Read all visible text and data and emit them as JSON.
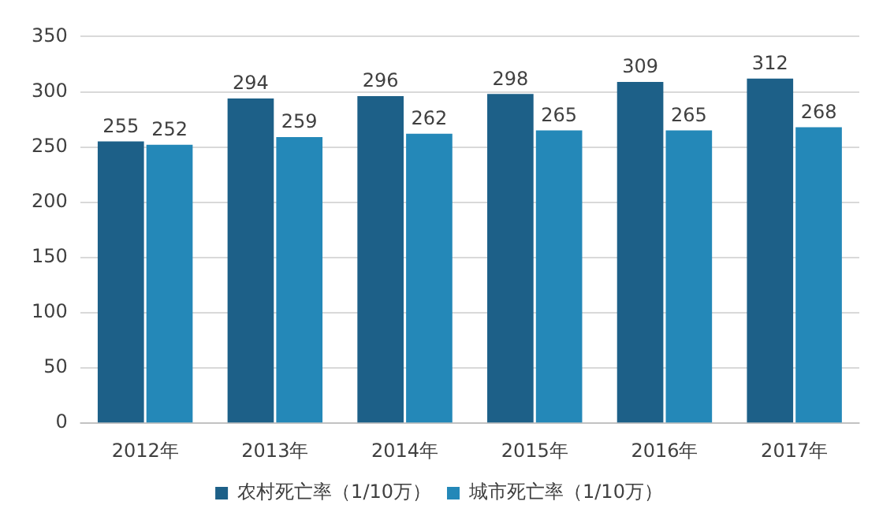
{
  "chart_data": {
    "type": "bar",
    "categories": [
      "2012年",
      "2013年",
      "2014年",
      "2015年",
      "2016年",
      "2017年"
    ],
    "series": [
      {
        "name": "农村死亡率（1/10万）",
        "color": "#1d6088",
        "values": [
          255,
          294,
          296,
          298,
          309,
          312
        ]
      },
      {
        "name": "城市死亡率（1/10万）",
        "color": "#2488b8",
        "values": [
          252,
          259,
          262,
          265,
          265,
          268
        ]
      }
    ],
    "ylim": [
      0,
      350
    ],
    "yticks": [
      0,
      50,
      100,
      150,
      200,
      250,
      300,
      350
    ],
    "grid": "y",
    "legend": "bottom",
    "data_labels": true
  }
}
